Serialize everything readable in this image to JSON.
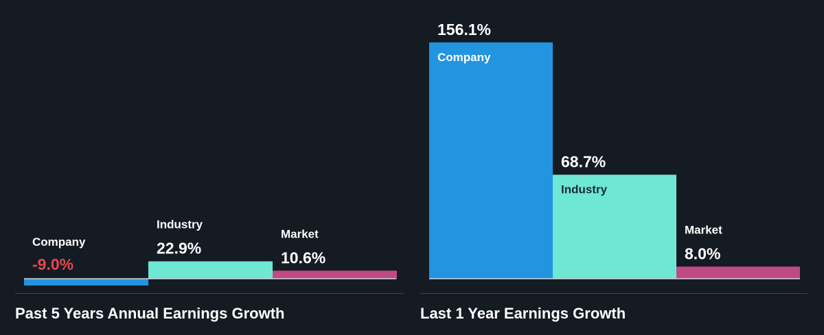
{
  "colors": {
    "background": "#151b23",
    "company": "#2394e0",
    "industry": "#6ee7d5",
    "market": "#c04a85",
    "negative_text": "#e5484d",
    "text": "#ffffff",
    "dark_text": "#1b2a33",
    "baseline": "#d0d4da",
    "divider": "#3a4452"
  },
  "chart_data": [
    {
      "type": "bar",
      "title": "Past 5 Years Annual Earnings Growth",
      "categories": [
        "Company",
        "Industry",
        "Market"
      ],
      "values": [
        -9.0,
        22.9,
        10.6
      ],
      "value_labels": [
        "-9.0%",
        "22.9%",
        "10.6%"
      ],
      "ylim": [
        -9.0,
        22.9
      ],
      "grid": false,
      "legend": "none"
    },
    {
      "type": "bar",
      "title": "Last 1 Year Earnings Growth",
      "categories": [
        "Company",
        "Industry",
        "Market"
      ],
      "values": [
        156.1,
        68.7,
        8.0
      ],
      "value_labels": [
        "156.1%",
        "68.7%",
        "8.0%"
      ],
      "ylim": [
        0,
        156.1
      ],
      "grid": false,
      "legend": "none"
    }
  ]
}
